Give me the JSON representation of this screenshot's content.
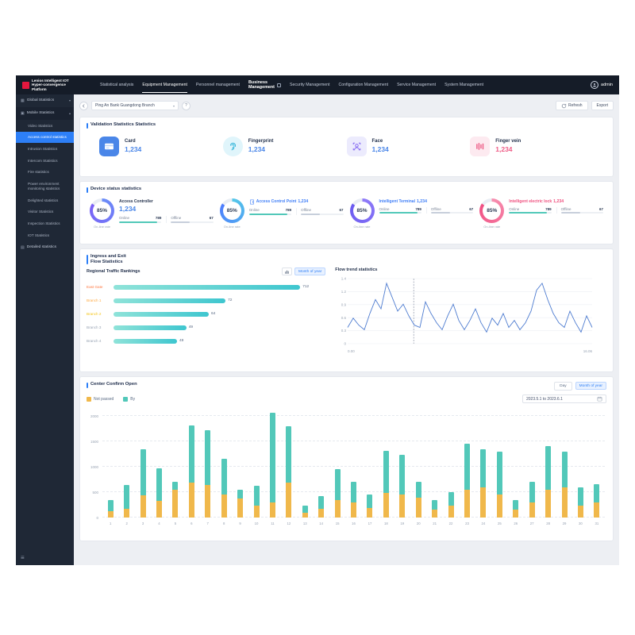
{
  "navbar": {
    "logo_text": "Lenios Intelligent IOT Hyper-convergence Platform",
    "menu": [
      {
        "label": "Statistical analysis",
        "active": false,
        "emph": false
      },
      {
        "label": "Equipment Management",
        "active": true,
        "emph": false
      },
      {
        "label": "Personnel management",
        "active": false,
        "emph": false
      },
      {
        "label": "Business Management",
        "active": false,
        "emph": true
      },
      {
        "label": "Security Management",
        "active": false,
        "emph": false
      },
      {
        "label": "Configuration Management",
        "active": false,
        "emph": false
      },
      {
        "label": "Service Management",
        "active": false,
        "emph": false
      },
      {
        "label": "System Management",
        "active": false,
        "emph": false
      }
    ],
    "user": "admin"
  },
  "sidebar": {
    "items": [
      {
        "type": "group",
        "label": "Global Statistics",
        "icon": "grid-icon",
        "expanded": false
      },
      {
        "type": "group",
        "label": "Mobile Statistics",
        "icon": "monitor-icon",
        "expanded": true
      },
      {
        "type": "child",
        "label": "Video Statistics",
        "active": false
      },
      {
        "type": "child",
        "label": "Access control statistics",
        "active": true
      },
      {
        "type": "child",
        "label": "Intrusion Statistics",
        "active": false
      },
      {
        "type": "child",
        "label": "Intercom Statistics",
        "active": false
      },
      {
        "type": "child",
        "label": "Fire statistics",
        "active": false
      },
      {
        "type": "child",
        "label": "Power environment monitoring statistics",
        "active": false
      },
      {
        "type": "child",
        "label": "Delighted statistics",
        "active": false
      },
      {
        "type": "child",
        "label": "Visitor Statistics",
        "active": false
      },
      {
        "type": "child",
        "label": "Inspection Statistics",
        "active": false
      },
      {
        "type": "child",
        "label": "IOT Statistics",
        "active": false
      },
      {
        "type": "group",
        "label": "Detailed statistics",
        "icon": "document-icon",
        "expanded": null
      }
    ]
  },
  "toolbar": {
    "branch": "Ping An Bank Guangdong Branch",
    "help_glyph": "?",
    "refresh_label": "Refresh",
    "export_label": "Export"
  },
  "validation": {
    "title": "Validation Statistics Statistics",
    "items": [
      {
        "label": "Card",
        "value": "1,234",
        "icon": "card-icon",
        "icon_color": "#ffffff",
        "icon_bg": "#4a86e8",
        "round": false,
        "value_color": "#4a86e8"
      },
      {
        "label": "Fingerprint",
        "value": "1,234",
        "icon": "fingerprint-icon",
        "icon_color": "#2bb3d8",
        "icon_bg": "#e0f5fb",
        "round": true,
        "value_color": "#4a86e8"
      },
      {
        "label": "Face",
        "value": "1,234",
        "icon": "face-icon",
        "icon_color": "#7a5cf0",
        "icon_bg": "#ecebfd",
        "round": false,
        "value_color": "#4a86e8"
      },
      {
        "label": "Finger vein",
        "value": "1,234",
        "icon": "finger-vein-icon",
        "icon_color": "#ee5c86",
        "icon_bg": "#fdeaf0",
        "round": false,
        "value_color": "#ee5c86"
      }
    ]
  },
  "device_status": {
    "title": "Device status statistics",
    "rate_label": "On-line rate",
    "gauges": [
      {
        "name": "Access Controller",
        "value": "1,234",
        "percent": 85,
        "percent_label": "85%",
        "ring_from": "#6a8df8",
        "ring_to": "#7b5ff6",
        "name_color": "#24324d",
        "value_color": "#4a86e8",
        "big_value": true,
        "icon": null,
        "online_label": "Online",
        "online_value": "789",
        "offline_label": "Offline",
        "offline_value": "67"
      },
      {
        "name": "Access Control Point",
        "value": "1,234",
        "percent": 85,
        "percent_label": "85%",
        "ring_from": "#54c8e8",
        "ring_to": "#4d7cfe",
        "name_color": "#3f7ef7",
        "value_color": "#3f7ef7",
        "big_value": false,
        "icon": "door-icon",
        "online_label": "Online",
        "online_value": "789",
        "offline_label": "Offline",
        "offline_value": "67"
      },
      {
        "name": "Intelligent Terminal",
        "value": "1,234",
        "percent": 85,
        "percent_label": "85%",
        "ring_from": "#8f7bf8",
        "ring_to": "#6a5af0",
        "name_color": "#3f7ef7",
        "value_color": "#3f7ef7",
        "big_value": false,
        "icon": null,
        "online_label": "Online",
        "online_value": "789",
        "offline_label": "Offline",
        "offline_value": "67"
      },
      {
        "name": "Intelligent electric lock",
        "value": "1,234",
        "percent": 85,
        "percent_label": "85%",
        "ring_from": "#f78fb0",
        "ring_to": "#f04f82",
        "name_color": "#ef4f7e",
        "value_color": "#ef4f7e",
        "big_value": false,
        "icon": null,
        "online_label": "Online",
        "online_value": "789",
        "offline_label": "Offline",
        "offline_value": "67"
      }
    ],
    "online_bar_color": "#52c8b9",
    "offline_bar_color": "#c7cfdb"
  },
  "flow": {
    "title_line1": "Ingress and Exit",
    "title_line2": "Flow Statistics",
    "rank": {
      "title": "Regional Traffic Rankings",
      "toggle_label": "Month of year",
      "chart_data": {
        "type": "bar",
        "orientation": "horizontal",
        "items": [
          {
            "label": "East Gate",
            "value": 712,
            "width_pct": 100,
            "label_color": "#ff7a45"
          },
          {
            "label": "Branch 1",
            "value": 72,
            "width_pct": 60,
            "label_color": "#ffa940"
          },
          {
            "label": "Branch 2",
            "value": 64,
            "width_pct": 51,
            "label_color": "#f5c518"
          },
          {
            "label": "Branch 3",
            "value": 49,
            "width_pct": 39,
            "label_color": "#98a3b3"
          },
          {
            "label": "Branch 4",
            "value": 49,
            "width_pct": 34,
            "label_color": "#98a3b3"
          }
        ],
        "bar_color_start": "#8fe3d9",
        "bar_color_end": "#3ec6cf"
      }
    },
    "trend": {
      "title": "Flow trend statistics",
      "chart_data": {
        "type": "line",
        "y_ticks": [
          "1.4",
          "1.2",
          "0.9",
          "0.6",
          "0.3",
          "0"
        ],
        "ymax": 1.4,
        "x_start_label": "0.00",
        "x_end_label": "16.06",
        "marker_pct": 27,
        "line_color": "#4e7cd0",
        "values": [
          0.35,
          0.55,
          0.4,
          0.3,
          0.65,
          0.95,
          0.75,
          1.3,
          1.0,
          0.7,
          0.85,
          0.6,
          0.4,
          0.35,
          0.9,
          0.65,
          0.45,
          0.3,
          0.6,
          0.85,
          0.5,
          0.3,
          0.5,
          0.75,
          0.45,
          0.25,
          0.55,
          0.4,
          0.65,
          0.35,
          0.5,
          0.3,
          0.45,
          0.7,
          1.15,
          1.3,
          0.95,
          0.65,
          0.45,
          0.35,
          0.7,
          0.45,
          0.25,
          0.6,
          0.35
        ]
      }
    }
  },
  "open_stats": {
    "title": "Center Confirm Open",
    "legend": [
      {
        "label": "Not passed",
        "color": "#f0b84b"
      },
      {
        "label": "By",
        "color": "#52c8b9"
      }
    ],
    "day_label": "Day",
    "month_label": "Month of year",
    "date_range": "2023.5.1 to 2023.6.1",
    "chart_data": {
      "type": "bar",
      "stacked": true,
      "y_ticks": [
        0,
        500,
        1000,
        1500,
        2000
      ],
      "ymax": 2000,
      "categories": [
        "1",
        "2",
        "3",
        "4",
        "5",
        "6",
        "7",
        "8",
        "9",
        "10",
        "11",
        "12",
        "13",
        "14",
        "15",
        "16",
        "17",
        "18",
        "19",
        "20",
        "21",
        "22",
        "23",
        "24",
        "25",
        "26",
        "27",
        "28",
        "29",
        "30",
        "31"
      ],
      "series": [
        {
          "name": "Not passed",
          "color": "#f0b84b",
          "values": [
            120,
            170,
            430,
            330,
            540,
            680,
            640,
            450,
            380,
            240,
            300,
            680,
            90,
            170,
            340,
            290,
            190,
            490,
            450,
            390,
            150,
            240,
            540,
            590,
            450,
            150,
            290,
            540,
            590,
            240,
            290
          ]
        },
        {
          "name": "By",
          "color": "#52c8b9",
          "values": [
            230,
            470,
            920,
            640,
            160,
            1140,
            1080,
            700,
            170,
            380,
            1760,
            1120,
            140,
            260,
            610,
            420,
            260,
            820,
            790,
            310,
            200,
            260,
            910,
            760,
            850,
            200,
            410,
            860,
            710,
            360,
            360
          ]
        }
      ]
    }
  }
}
